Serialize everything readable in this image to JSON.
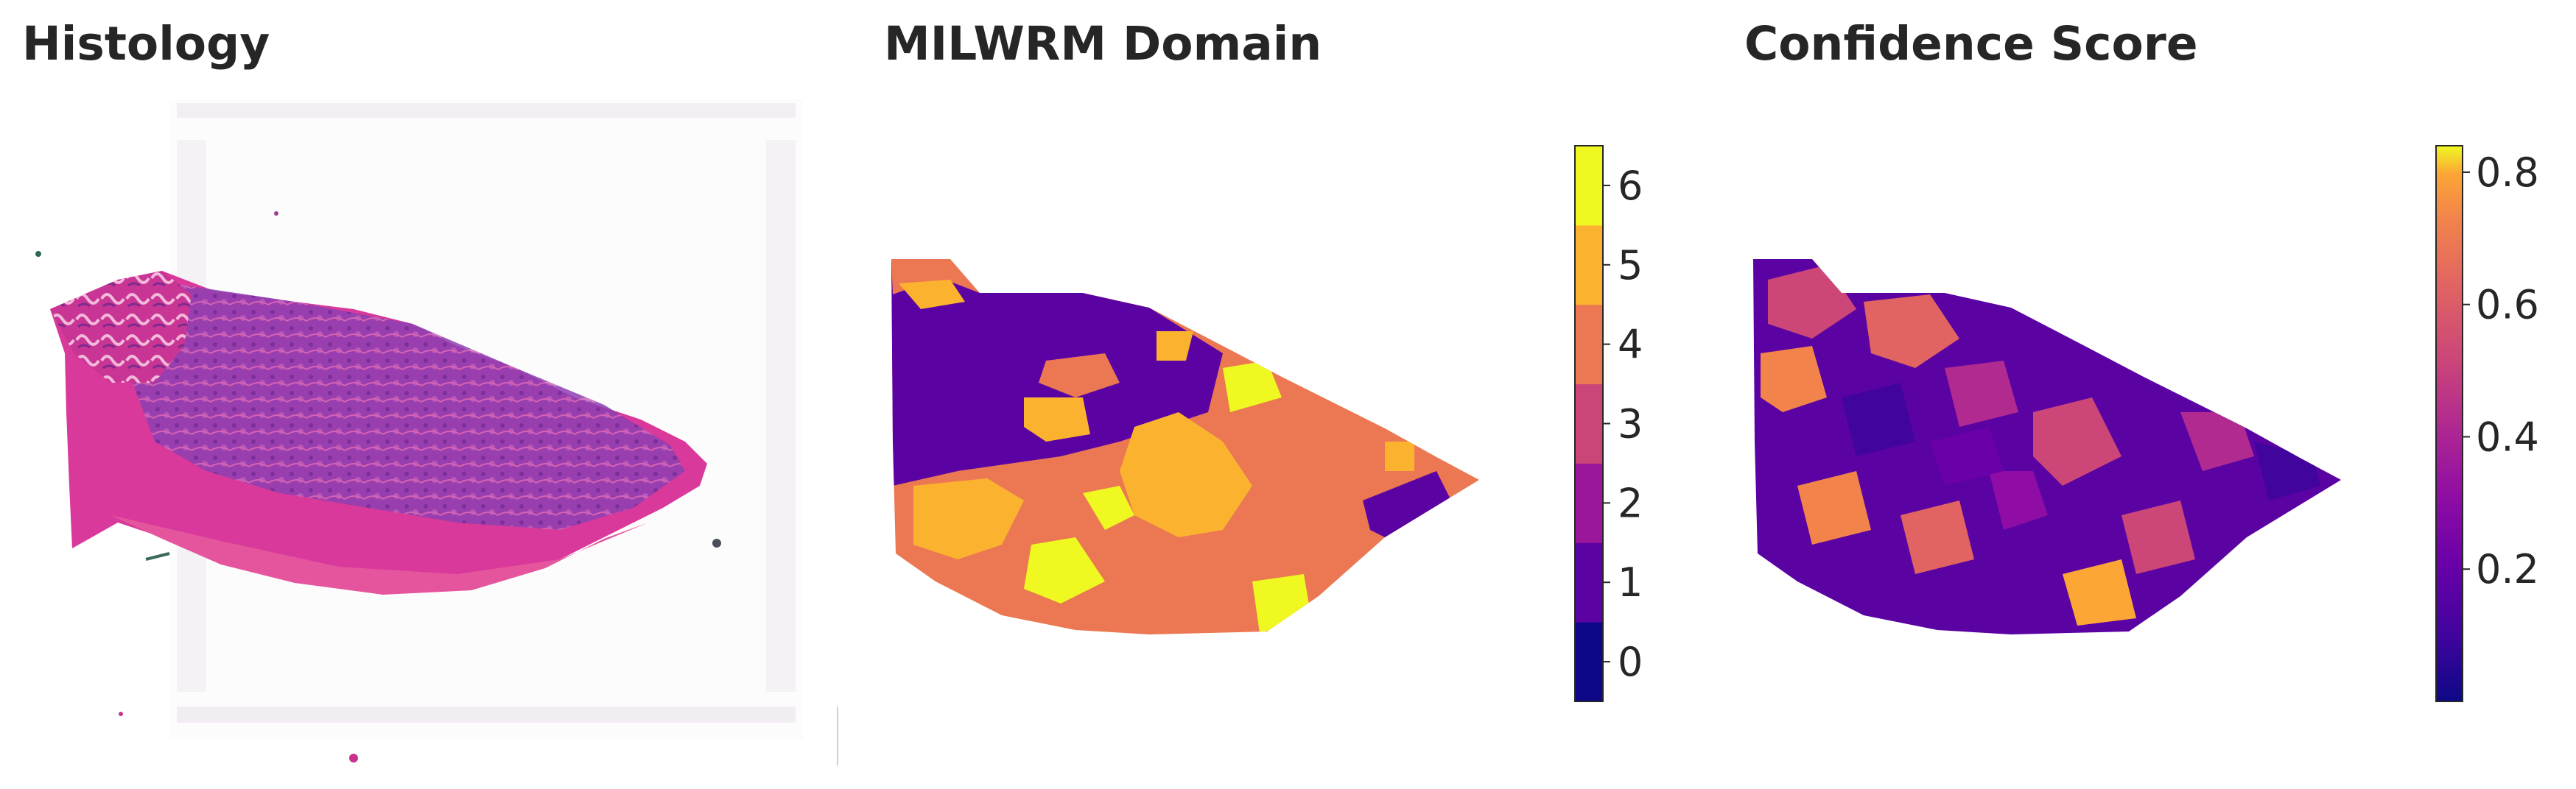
{
  "panels": {
    "histology": {
      "title": "Histology"
    },
    "domain": {
      "title": "MILWRM Domain",
      "colorbar": {
        "ticks": [
          "0",
          "1",
          "2",
          "3",
          "4",
          "5",
          "6"
        ],
        "colors": [
          "#0d0887",
          "#5b02a3",
          "#9a179b",
          "#cb4678",
          "#eb7852",
          "#fbb32f",
          "#eff821"
        ]
      }
    },
    "confidence": {
      "title": "Confidence Score",
      "colorbar": {
        "ticks": [
          "0.2",
          "0.4",
          "0.6",
          "0.8"
        ],
        "range": [
          0.0,
          0.84
        ],
        "colormap": "plasma"
      }
    }
  },
  "colors": {
    "tissue_pink": "#d9399a",
    "tissue_purple": "#8a3fb0",
    "stroma_pink": "#e4559e"
  }
}
